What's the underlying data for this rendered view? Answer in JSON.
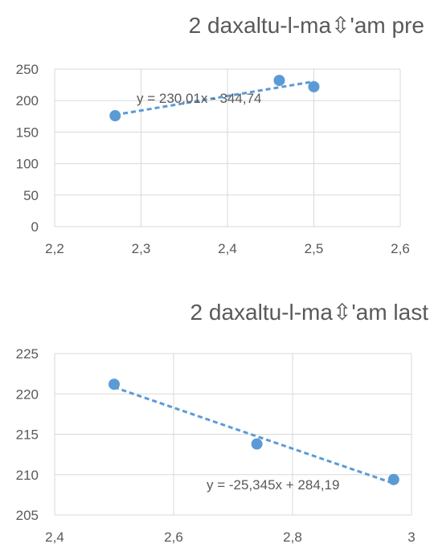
{
  "chart_data": [
    {
      "type": "scatter",
      "title": "2 daxaltu-l-ma⇳'am  pre",
      "xlim": [
        2.2,
        2.6
      ],
      "ylim": [
        0,
        250
      ],
      "x_ticks": [
        "2,2",
        "2,3",
        "2,4",
        "2,5",
        "2,6"
      ],
      "y_ticks": [
        "0",
        "50",
        "100",
        "150",
        "200",
        "250"
      ],
      "series": [
        {
          "x": [
            2.27,
            2.46,
            2.5
          ],
          "y": [
            176,
            232,
            222
          ]
        }
      ],
      "trendline": {
        "slope": 230.01,
        "intercept": -344.74,
        "x_range": [
          2.27,
          2.5
        ],
        "label": "y = 230,01x - 344,74"
      },
      "grid": true,
      "legend": "none",
      "marker_color": "#5b9bd5"
    },
    {
      "type": "scatter",
      "title": "2 daxaltu-l-ma⇳'am  last",
      "xlim": [
        2.4,
        3.0
      ],
      "ylim": [
        205,
        225
      ],
      "x_ticks": [
        "2,4",
        "2,6",
        "2,8",
        "3"
      ],
      "y_ticks": [
        "205",
        "210",
        "215",
        "220",
        "225"
      ],
      "series": [
        {
          "x": [
            2.5,
            2.74,
            2.97
          ],
          "y": [
            221.2,
            213.8,
            209.4
          ]
        }
      ],
      "trendline": {
        "slope": -25.345,
        "intercept": 284.19,
        "x_range": [
          2.5,
          2.97
        ],
        "label": "y = -25,345x + 284,19"
      },
      "grid": true,
      "legend": "none",
      "marker_color": "#5b9bd5"
    }
  ]
}
